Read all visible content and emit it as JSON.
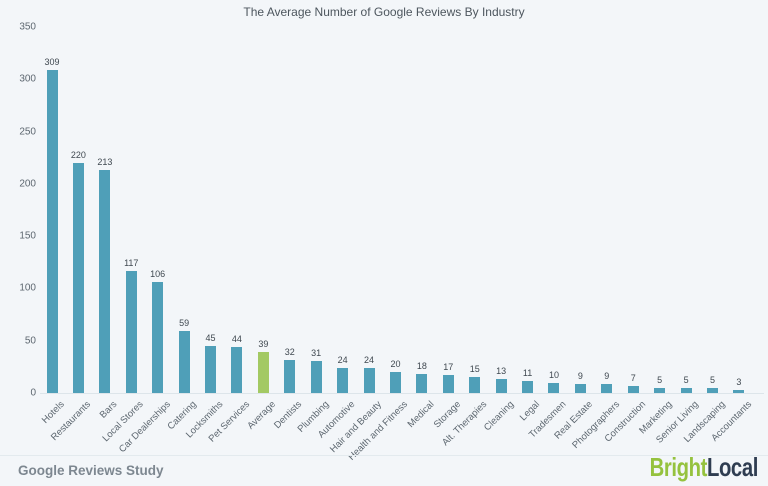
{
  "title": "The Average Number of Google Reviews By Industry",
  "colors": {
    "background": "#f3f6f9",
    "bar": "#4f9fb8",
    "highlight_bar": "#a3c963",
    "brand_green": "#95c23e",
    "brand_dark": "#2f3d51"
  },
  "chart_data": {
    "type": "bar",
    "title": "The Average Number of Google Reviews By Industry",
    "categories": [
      "Hotels",
      "Restaurants",
      "Bars",
      "Local Stores",
      "Car Dealerships",
      "Catering",
      "Locksmiths",
      "Pet Services",
      "Average",
      "Dentists",
      "Plumbing",
      "Automotive",
      "Hair and Beauty",
      "Health and Fitness",
      "Medical",
      "Storage",
      "Alt. Therapies",
      "Cleaning",
      "Legal",
      "Tradesmen",
      "Real Estate",
      "Photographers",
      "Construction",
      "Marketing",
      "Senior Living",
      "Landscaping",
      "Accountants"
    ],
    "values": [
      309,
      220,
      213,
      117,
      106,
      59,
      45,
      44,
      39,
      32,
      31,
      24,
      24,
      20,
      18,
      17,
      15,
      13,
      11,
      10,
      9,
      9,
      7,
      5,
      5,
      5,
      3
    ],
    "highlight_category": "Average",
    "yticks": [
      0,
      50,
      100,
      150,
      200,
      250,
      300,
      350
    ],
    "ylim": [
      0,
      350
    ],
    "grid": false,
    "legend": "none",
    "xlabel": "",
    "ylabel": ""
  },
  "footer": {
    "source_label": "Google Reviews Study",
    "brand": {
      "part1": "Bright",
      "part2": "Local"
    }
  }
}
